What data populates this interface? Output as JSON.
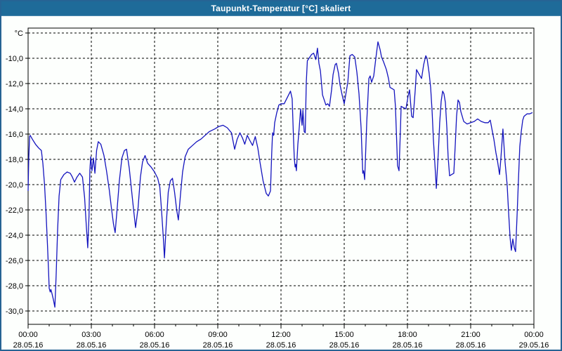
{
  "window": {
    "title": "Taupunkt-Temperatur [°C] skaliert"
  },
  "colors": {
    "titlebar_bg": "#1e6b99",
    "titlebar_text": "#ffffff",
    "frame_border": "#266394",
    "chart_bg": "#fdfffd",
    "plot_border": "#000000",
    "gridline": "#000000",
    "tick": "#000000",
    "label_text": "#000000",
    "series_line": "#1414be"
  },
  "chart_data": {
    "type": "line",
    "title": "Taupunkt-Temperatur [°C] skaliert",
    "grid": "dashed-both-axes",
    "legend": "none",
    "y_axis": {
      "unit_label": "°C",
      "min": -30.5,
      "max": -8,
      "top_gridline_value": -8,
      "ticks": [
        {
          "value": -10,
          "label": "-10,0"
        },
        {
          "value": -12,
          "label": "-12,0"
        },
        {
          "value": -14,
          "label": "-14,0"
        },
        {
          "value": -16,
          "label": "-16,0"
        },
        {
          "value": -18,
          "label": "-18,0"
        },
        {
          "value": -20,
          "label": "-20,0"
        },
        {
          "value": -22,
          "label": "-22,0"
        },
        {
          "value": -24,
          "label": "-24,0"
        },
        {
          "value": -26,
          "label": "-26,0"
        },
        {
          "value": -28,
          "label": "-28,0"
        },
        {
          "value": -30,
          "label": "-30,0"
        }
      ]
    },
    "x_axis": {
      "hours_span": 24,
      "minor_tick_every_hours": 1,
      "major_tick_every_hours": 3,
      "ticks": [
        {
          "hour": 0,
          "time": "00:00",
          "date": "28.05.16"
        },
        {
          "hour": 3,
          "time": "03:00",
          "date": "28.05.16"
        },
        {
          "hour": 6,
          "time": "06:00",
          "date": "28.05.16"
        },
        {
          "hour": 9,
          "time": "09:00",
          "date": "28.05.16"
        },
        {
          "hour": 12,
          "time": "12:00",
          "date": "28.05.16"
        },
        {
          "hour": 15,
          "time": "15:00",
          "date": "28.05.16"
        },
        {
          "hour": 18,
          "time": "18:00",
          "date": "28.05.16"
        },
        {
          "hour": 21,
          "time": "21:00",
          "date": "28.05.16"
        },
        {
          "hour": 24,
          "time": "00:00",
          "date": "29.05.16"
        }
      ]
    },
    "series": [
      {
        "name": "Taupunkt-Temperatur skaliert",
        "color": "#1414be",
        "points": [
          [
            0.0,
            -20.5
          ],
          [
            0.03,
            -18.0
          ],
          [
            0.07,
            -16.2
          ],
          [
            0.1,
            -16.1
          ],
          [
            0.2,
            -16.4
          ],
          [
            0.35,
            -16.8
          ],
          [
            0.5,
            -17.1
          ],
          [
            0.63,
            -17.3
          ],
          [
            0.7,
            -18.3
          ],
          [
            0.78,
            -20.0
          ],
          [
            0.85,
            -22.2
          ],
          [
            0.92,
            -24.8
          ],
          [
            0.97,
            -26.8
          ],
          [
            1.0,
            -28.2
          ],
          [
            1.05,
            -28.5
          ],
          [
            1.08,
            -28.3
          ],
          [
            1.13,
            -28.6
          ],
          [
            1.2,
            -29.1
          ],
          [
            1.27,
            -29.7
          ],
          [
            1.33,
            -27.2
          ],
          [
            1.4,
            -23.6
          ],
          [
            1.47,
            -20.9
          ],
          [
            1.55,
            -19.6
          ],
          [
            1.7,
            -19.2
          ],
          [
            1.85,
            -19.0
          ],
          [
            2.0,
            -19.1
          ],
          [
            2.1,
            -19.4
          ],
          [
            2.2,
            -19.8
          ],
          [
            2.32,
            -19.4
          ],
          [
            2.45,
            -19.1
          ],
          [
            2.58,
            -19.4
          ],
          [
            2.68,
            -21.0
          ],
          [
            2.76,
            -23.2
          ],
          [
            2.83,
            -25.0
          ],
          [
            2.89,
            -22.5
          ],
          [
            2.93,
            -18.9
          ],
          [
            2.97,
            -17.8
          ],
          [
            3.03,
            -18.9
          ],
          [
            3.1,
            -17.9
          ],
          [
            3.17,
            -19.1
          ],
          [
            3.25,
            -17.3
          ],
          [
            3.33,
            -16.6
          ],
          [
            3.45,
            -16.8
          ],
          [
            3.6,
            -17.7
          ],
          [
            3.72,
            -18.9
          ],
          [
            3.85,
            -20.4
          ],
          [
            3.95,
            -21.8
          ],
          [
            4.05,
            -23.1
          ],
          [
            4.13,
            -23.8
          ],
          [
            4.23,
            -21.8
          ],
          [
            4.33,
            -19.7
          ],
          [
            4.45,
            -17.9
          ],
          [
            4.57,
            -17.3
          ],
          [
            4.67,
            -17.2
          ],
          [
            4.8,
            -18.7
          ],
          [
            4.9,
            -20.3
          ],
          [
            5.0,
            -21.9
          ],
          [
            5.1,
            -23.4
          ],
          [
            5.22,
            -21.8
          ],
          [
            5.33,
            -19.4
          ],
          [
            5.43,
            -18.2
          ],
          [
            5.55,
            -17.7
          ],
          [
            5.67,
            -18.3
          ],
          [
            5.83,
            -18.6
          ],
          [
            6.0,
            -19.0
          ],
          [
            6.15,
            -19.5
          ],
          [
            6.25,
            -20.2
          ],
          [
            6.33,
            -22.0
          ],
          [
            6.42,
            -24.3
          ],
          [
            6.47,
            -25.8
          ],
          [
            6.55,
            -23.3
          ],
          [
            6.65,
            -20.6
          ],
          [
            6.75,
            -19.7
          ],
          [
            6.85,
            -19.5
          ],
          [
            6.95,
            -20.6
          ],
          [
            7.05,
            -22.0
          ],
          [
            7.13,
            -22.8
          ],
          [
            7.23,
            -20.8
          ],
          [
            7.33,
            -19.0
          ],
          [
            7.45,
            -17.8
          ],
          [
            7.6,
            -17.2
          ],
          [
            7.8,
            -16.9
          ],
          [
            8.0,
            -16.6
          ],
          [
            8.2,
            -16.4
          ],
          [
            8.4,
            -16.1
          ],
          [
            8.6,
            -15.8
          ],
          [
            8.85,
            -15.6
          ],
          [
            9.05,
            -15.4
          ],
          [
            9.25,
            -15.3
          ],
          [
            9.45,
            -15.5
          ],
          [
            9.65,
            -15.9
          ],
          [
            9.8,
            -17.2
          ],
          [
            9.92,
            -16.4
          ],
          [
            10.05,
            -15.9
          ],
          [
            10.17,
            -16.3
          ],
          [
            10.28,
            -16.8
          ],
          [
            10.4,
            -16.1
          ],
          [
            10.52,
            -16.5
          ],
          [
            10.65,
            -16.9
          ],
          [
            10.78,
            -16.2
          ],
          [
            10.9,
            -17.1
          ],
          [
            11.0,
            -18.2
          ],
          [
            11.15,
            -19.7
          ],
          [
            11.3,
            -20.7
          ],
          [
            11.4,
            -20.9
          ],
          [
            11.5,
            -20.5
          ],
          [
            11.56,
            -17.5
          ],
          [
            11.6,
            -15.9
          ],
          [
            11.65,
            -16.1
          ],
          [
            11.7,
            -15.1
          ],
          [
            11.8,
            -14.3
          ],
          [
            11.9,
            -13.7
          ],
          [
            12.0,
            -13.6
          ],
          [
            12.15,
            -13.6
          ],
          [
            12.3,
            -13.1
          ],
          [
            12.45,
            -12.6
          ],
          [
            12.53,
            -13.2
          ],
          [
            12.58,
            -15.7
          ],
          [
            12.63,
            -17.9
          ],
          [
            12.67,
            -18.6
          ],
          [
            12.7,
            -18.4
          ],
          [
            12.73,
            -18.9
          ],
          [
            12.8,
            -16.8
          ],
          [
            12.87,
            -15.4
          ],
          [
            12.93,
            -14.0
          ],
          [
            13.0,
            -15.3
          ],
          [
            13.04,
            -14.1
          ],
          [
            13.1,
            -15.8
          ],
          [
            13.15,
            -15.9
          ],
          [
            13.2,
            -11.9
          ],
          [
            13.25,
            -10.2
          ],
          [
            13.33,
            -10.0
          ],
          [
            13.45,
            -9.7
          ],
          [
            13.55,
            -9.6
          ],
          [
            13.65,
            -10.1
          ],
          [
            13.73,
            -9.2
          ],
          [
            13.8,
            -10.4
          ],
          [
            13.87,
            -11.0
          ],
          [
            13.97,
            -12.9
          ],
          [
            14.13,
            -13.7
          ],
          [
            14.22,
            -13.6
          ],
          [
            14.3,
            -13.8
          ],
          [
            14.4,
            -12.5
          ],
          [
            14.47,
            -11.3
          ],
          [
            14.57,
            -10.5
          ],
          [
            14.63,
            -10.4
          ],
          [
            14.73,
            -11.2
          ],
          [
            14.8,
            -12.1
          ],
          [
            14.9,
            -12.9
          ],
          [
            15.0,
            -13.6
          ],
          [
            15.17,
            -11.9
          ],
          [
            15.27,
            -9.8
          ],
          [
            15.38,
            -9.7
          ],
          [
            15.5,
            -9.9
          ],
          [
            15.6,
            -11.1
          ],
          [
            15.7,
            -12.8
          ],
          [
            15.8,
            -15.5
          ],
          [
            15.88,
            -19.1
          ],
          [
            15.92,
            -18.9
          ],
          [
            15.97,
            -19.6
          ],
          [
            16.07,
            -15.0
          ],
          [
            16.17,
            -11.6
          ],
          [
            16.23,
            -11.4
          ],
          [
            16.3,
            -11.9
          ],
          [
            16.4,
            -11.4
          ],
          [
            16.5,
            -10.0
          ],
          [
            16.6,
            -8.7
          ],
          [
            16.7,
            -9.3
          ],
          [
            16.77,
            -9.9
          ],
          [
            16.87,
            -10.3
          ],
          [
            17.0,
            -10.9
          ],
          [
            17.1,
            -11.6
          ],
          [
            17.17,
            -12.3
          ],
          [
            17.27,
            -12.4
          ],
          [
            17.37,
            -12.5
          ],
          [
            17.43,
            -13.8
          ],
          [
            17.53,
            -18.5
          ],
          [
            17.6,
            -18.9
          ],
          [
            17.67,
            -15.5
          ],
          [
            17.7,
            -13.8
          ],
          [
            17.8,
            -13.9
          ],
          [
            17.93,
            -14.0
          ],
          [
            18.03,
            -13.0
          ],
          [
            18.1,
            -12.5
          ],
          [
            18.2,
            -14.6
          ],
          [
            18.27,
            -14.7
          ],
          [
            18.37,
            -12.5
          ],
          [
            18.43,
            -10.9
          ],
          [
            18.53,
            -11.2
          ],
          [
            18.67,
            -11.6
          ],
          [
            18.77,
            -10.5
          ],
          [
            18.87,
            -9.8
          ],
          [
            18.93,
            -10.0
          ],
          [
            19.03,
            -11.2
          ],
          [
            19.1,
            -12.3
          ],
          [
            19.17,
            -14.2
          ],
          [
            19.23,
            -16.4
          ],
          [
            19.3,
            -18.3
          ],
          [
            19.37,
            -20.3
          ],
          [
            19.47,
            -17.3
          ],
          [
            19.53,
            -15.1
          ],
          [
            19.6,
            -13.4
          ],
          [
            19.67,
            -12.6
          ],
          [
            19.73,
            -12.8
          ],
          [
            19.8,
            -13.5
          ],
          [
            19.87,
            -15.5
          ],
          [
            19.93,
            -17.8
          ],
          [
            20.0,
            -19.3
          ],
          [
            20.1,
            -19.2
          ],
          [
            20.2,
            -19.1
          ],
          [
            20.27,
            -16.8
          ],
          [
            20.33,
            -14.6
          ],
          [
            20.4,
            -13.3
          ],
          [
            20.47,
            -13.5
          ],
          [
            20.53,
            -14.2
          ],
          [
            20.67,
            -15.0
          ],
          [
            20.83,
            -15.2
          ],
          [
            21.0,
            -15.1
          ],
          [
            21.17,
            -15.0
          ],
          [
            21.33,
            -14.8
          ],
          [
            21.5,
            -15.0
          ],
          [
            21.67,
            -15.1
          ],
          [
            21.83,
            -15.1
          ],
          [
            21.93,
            -14.9
          ],
          [
            22.03,
            -15.8
          ],
          [
            22.1,
            -16.4
          ],
          [
            22.2,
            -17.5
          ],
          [
            22.27,
            -18.1
          ],
          [
            22.37,
            -19.2
          ],
          [
            22.43,
            -18.0
          ],
          [
            22.53,
            -15.6
          ],
          [
            22.63,
            -18.2
          ],
          [
            22.73,
            -20.0
          ],
          [
            22.8,
            -22.2
          ],
          [
            22.87,
            -24.2
          ],
          [
            22.93,
            -25.2
          ],
          [
            23.0,
            -24.3
          ],
          [
            23.07,
            -25.0
          ],
          [
            23.13,
            -25.3
          ],
          [
            23.2,
            -22.5
          ],
          [
            23.27,
            -19.5
          ],
          [
            23.33,
            -17.0
          ],
          [
            23.4,
            -15.8
          ],
          [
            23.47,
            -14.9
          ],
          [
            23.53,
            -14.6
          ],
          [
            23.67,
            -14.4
          ],
          [
            23.8,
            -14.4
          ],
          [
            23.93,
            -14.3
          ]
        ]
      }
    ]
  }
}
